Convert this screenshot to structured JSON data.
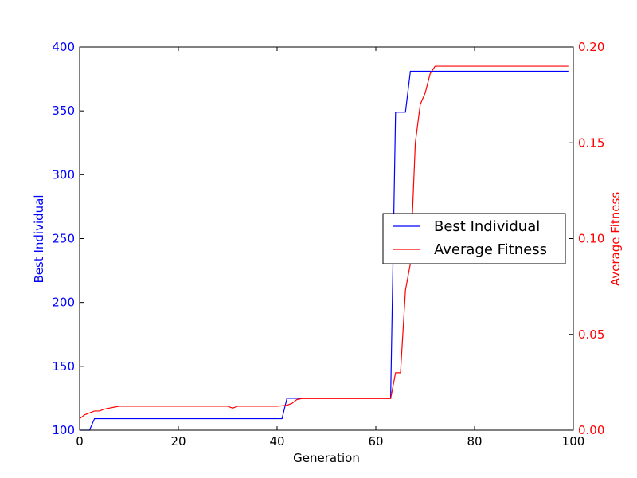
{
  "chart_data": {
    "type": "line",
    "title": "",
    "xlabel": "Generation",
    "ylabel_left": "Best Individual",
    "ylabel_right": "Average Fitness",
    "xlim": [
      0,
      100
    ],
    "ylim_left": [
      100,
      400
    ],
    "ylim_right": [
      0.0,
      0.2
    ],
    "x_ticks": [
      "0",
      "20",
      "40",
      "60",
      "80",
      "100"
    ],
    "y_left_ticks": [
      "100",
      "150",
      "200",
      "250",
      "300",
      "350",
      "400"
    ],
    "y_right_ticks": [
      "0.00",
      "0.05",
      "0.10",
      "0.15",
      "0.20"
    ],
    "legend_position": "center-right",
    "grid": false,
    "series": [
      {
        "name": "Best Individual",
        "axis": "left",
        "color": "#0000ff",
        "points": [
          [
            0,
            100
          ],
          [
            2,
            100
          ],
          [
            3,
            109
          ],
          [
            41,
            109
          ],
          [
            42,
            125
          ],
          [
            63,
            125
          ],
          [
            64,
            349
          ],
          [
            66,
            349
          ],
          [
            67,
            381
          ],
          [
            99,
            381
          ]
        ]
      },
      {
        "name": "Average Fitness",
        "axis": "right",
        "color": "#ff0000",
        "points": [
          [
            0,
            0.006
          ],
          [
            1,
            0.008
          ],
          [
            2,
            0.009
          ],
          [
            3,
            0.01
          ],
          [
            4,
            0.01
          ],
          [
            5,
            0.011
          ],
          [
            6,
            0.0115
          ],
          [
            7,
            0.012
          ],
          [
            8,
            0.0125
          ],
          [
            20,
            0.0125
          ],
          [
            30,
            0.0125
          ],
          [
            31,
            0.0115
          ],
          [
            32,
            0.0125
          ],
          [
            40,
            0.0125
          ],
          [
            42,
            0.013
          ],
          [
            43,
            0.014
          ],
          [
            44,
            0.016
          ],
          [
            45,
            0.0165
          ],
          [
            63,
            0.0165
          ],
          [
            64,
            0.03
          ],
          [
            65,
            0.03
          ],
          [
            66,
            0.073
          ],
          [
            67,
            0.087
          ],
          [
            68,
            0.15
          ],
          [
            69,
            0.17
          ],
          [
            70,
            0.176
          ],
          [
            71,
            0.186
          ],
          [
            72,
            0.19
          ],
          [
            80,
            0.19
          ],
          [
            99,
            0.19
          ]
        ]
      }
    ]
  },
  "colors": {
    "left_axis": "#0000ff",
    "right_axis": "#ff0000",
    "frame": "#000000"
  }
}
